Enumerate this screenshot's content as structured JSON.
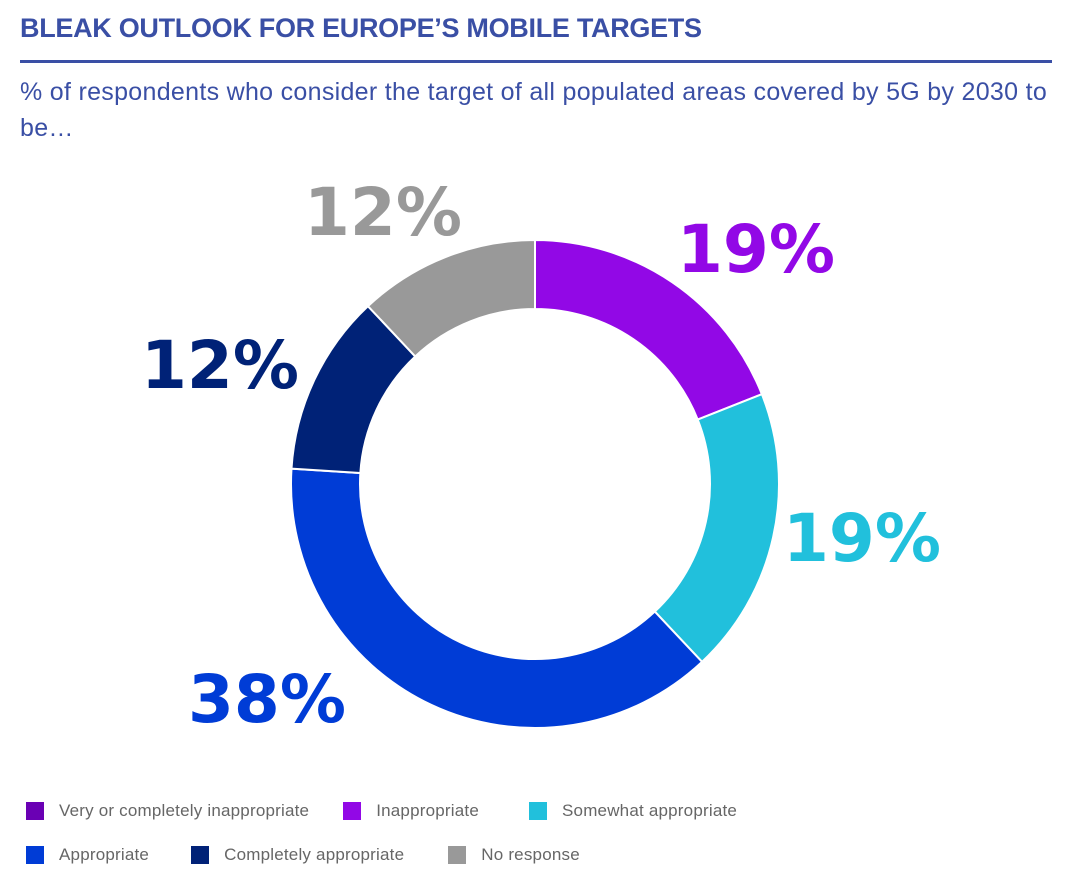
{
  "header": {
    "title": "BLEAK OUTLOOK FOR EUROPE’S MOBILE TARGETS",
    "subtitle": "% of respondents who consider the target of all populated areas covered by 5G by 2030 to be…"
  },
  "chart_data": {
    "type": "pie",
    "subtype": "donut",
    "title": "BLEAK OUTLOOK FOR EUROPE’S MOBILE TARGETS",
    "subtitle": "% of respondents who consider the target of all populated areas covered by 5G by 2030 to be…",
    "unit": "%",
    "start": "top",
    "direction": "clockwise",
    "legend_position": "bottom",
    "categories": [
      "Very or completely inappropriate",
      "Inappropriate",
      "Somewhat appropriate",
      "Appropriate",
      "Completely appropriate",
      "No response"
    ],
    "values": [
      0,
      19,
      19,
      38,
      12,
      12
    ],
    "labels": [
      "",
      "19%",
      "19%",
      "38%",
      "12%",
      "12%"
    ],
    "colors": [
      "#6a00b4",
      "#9208e6",
      "#21c0dc",
      "#003cd6",
      "#002277",
      "#999999"
    ]
  },
  "legend": {
    "rows": [
      [
        0,
        1,
        2
      ],
      [
        3,
        4,
        5
      ]
    ]
  }
}
